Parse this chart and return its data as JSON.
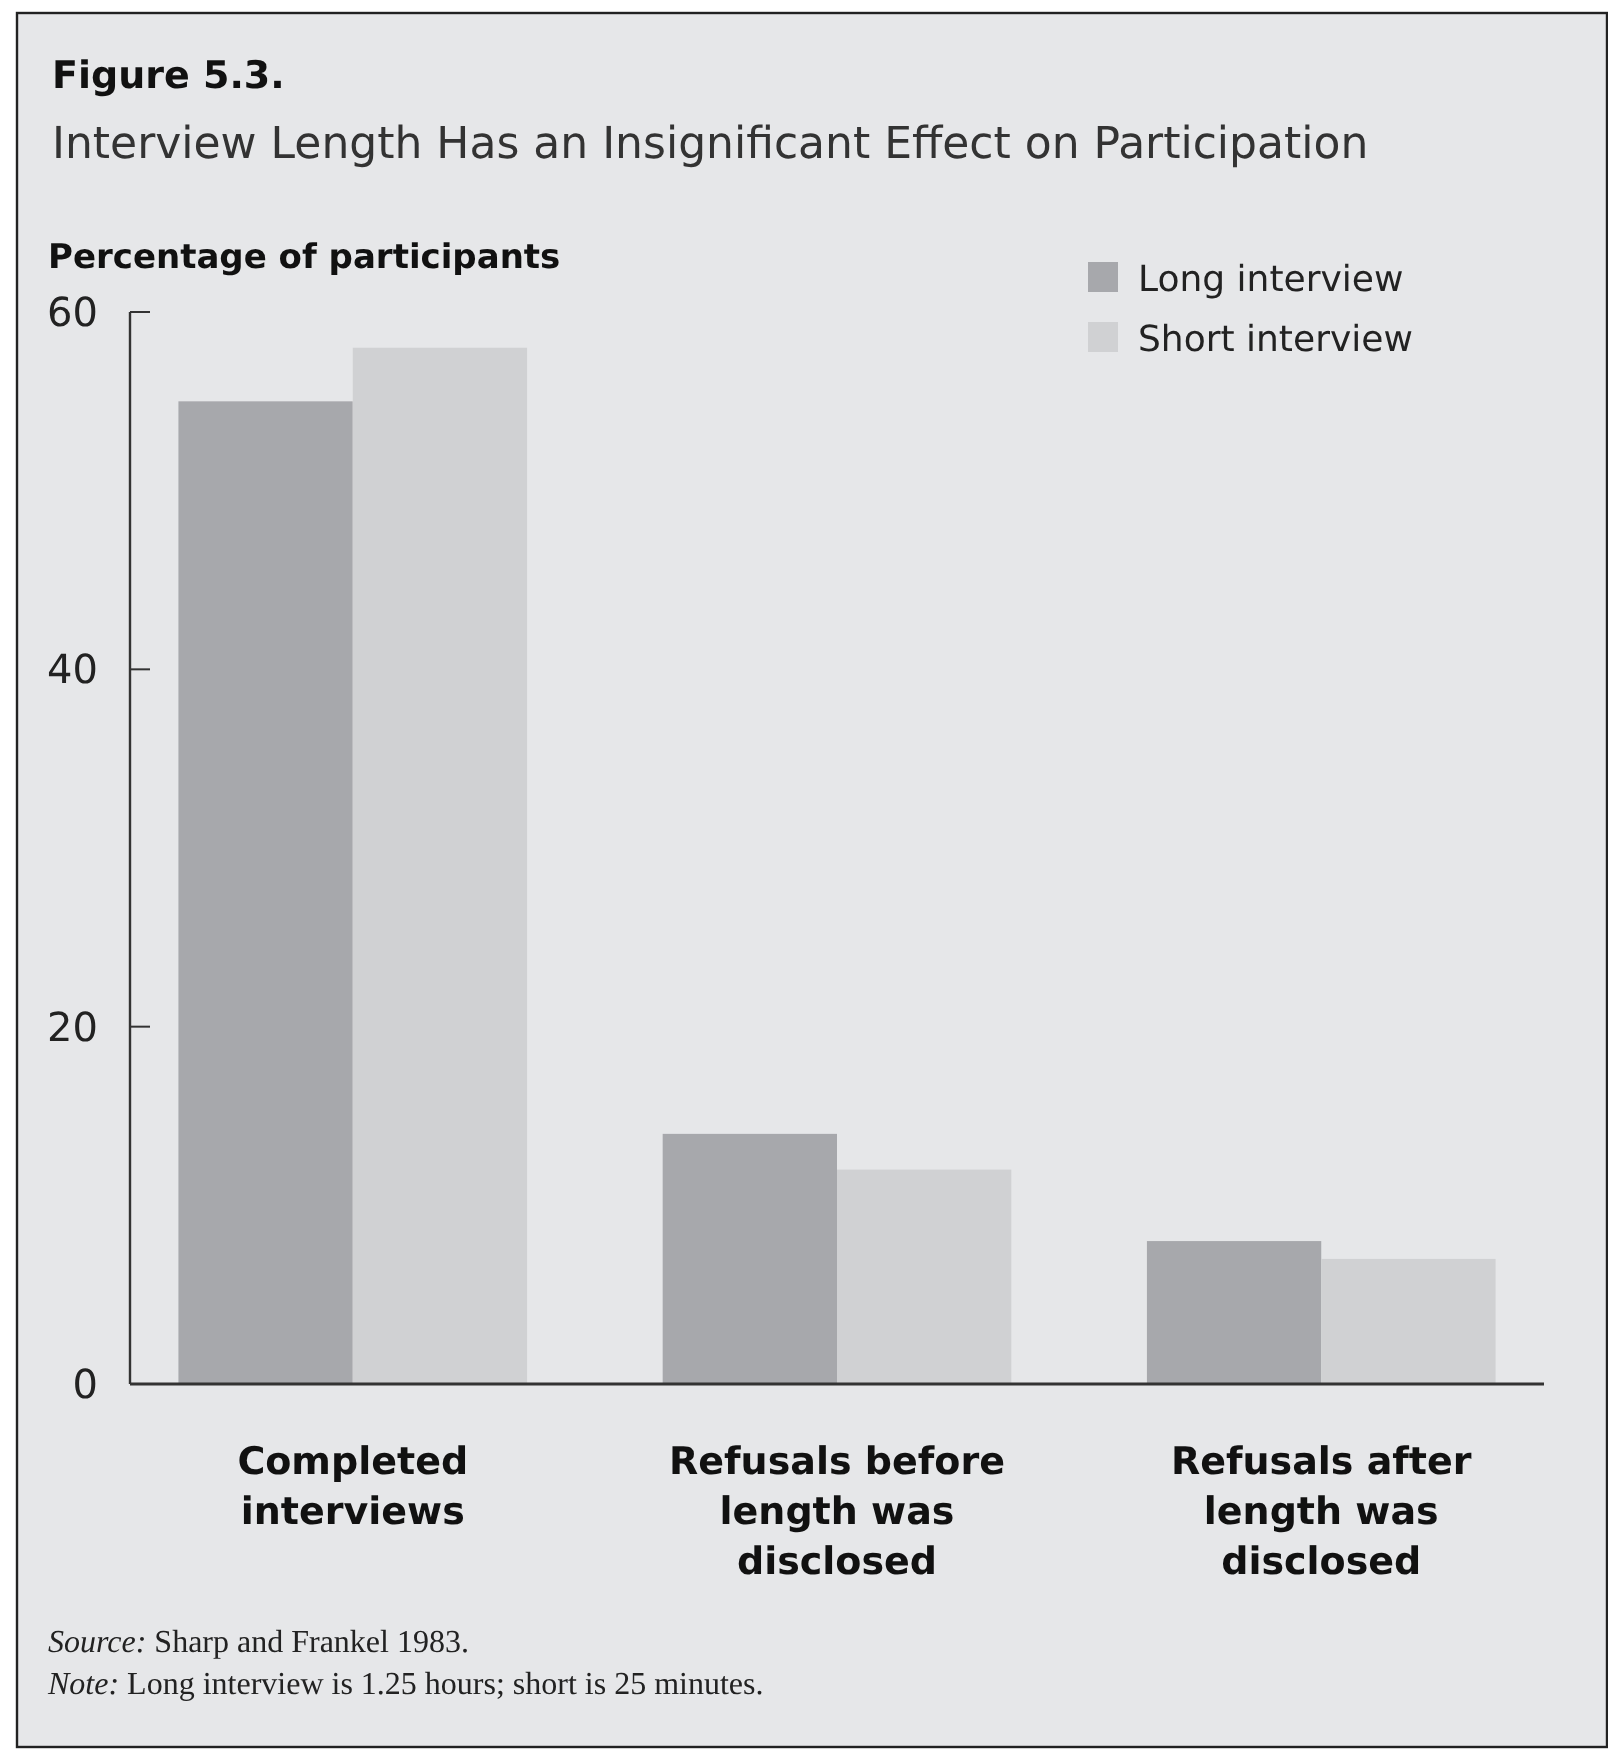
{
  "chart_data": {
    "type": "bar",
    "title": "Figure 5.3.",
    "subtitle": "Interview Length Has an Insignificant Effect on Participation",
    "ylabel": "Percentage of participants",
    "categories": [
      "Completed interviews",
      "Refusals before length was disclosed",
      "Refusals after length was disclosed"
    ],
    "series": [
      {
        "name": "Long interview",
        "color": "#a7a8ac",
        "values": [
          55,
          14,
          8
        ]
      },
      {
        "name": "Short interview",
        "color": "#d0d1d3",
        "values": [
          58,
          12,
          7
        ]
      }
    ],
    "ylim": [
      0,
      60
    ],
    "yticks": [
      0,
      20,
      40,
      60
    ],
    "grid": false,
    "legend": "top right",
    "annotations": [
      "Source: Sharp and Frankel 1983.",
      "Note: Long interview is 1.25 hours; short is 25 minutes."
    ]
  }
}
